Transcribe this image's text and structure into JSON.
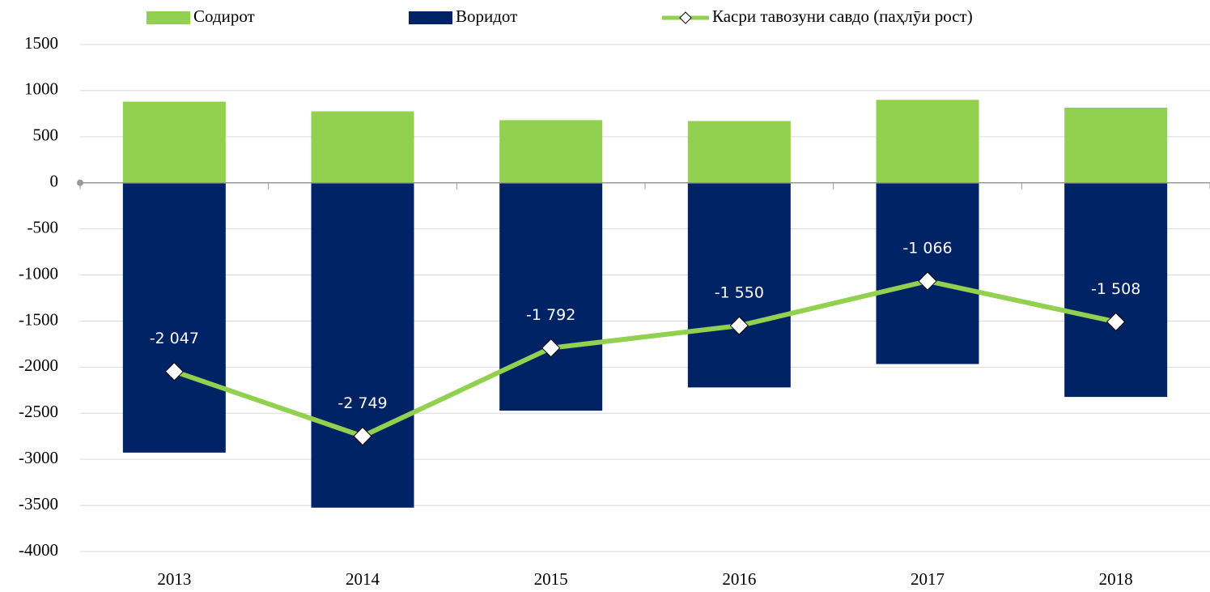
{
  "chart_data": {
    "type": "bar",
    "stacked": true,
    "categories": [
      "2013",
      "2014",
      "2015",
      "2016",
      "2017",
      "2018"
    ],
    "series": [
      {
        "name": "Содирот",
        "type": "bar",
        "color": "#92d050",
        "values": [
          880,
          775,
          680,
          670,
          900,
          815
        ]
      },
      {
        "name": "Воридот",
        "type": "bar",
        "color": "#002366",
        "values": [
          -2927,
          -3524,
          -2472,
          -2220,
          -1966,
          -2323
        ]
      },
      {
        "name": "Касри тавозуни савдо (паҳлӯи рост)",
        "type": "line",
        "color": "#92d050",
        "values": [
          -2047,
          -2749,
          -1792,
          -1550,
          -1066,
          -1508
        ],
        "value_labels": [
          "-2 047",
          "-2 749",
          "-1 792",
          "-1 550",
          "-1 066",
          "-1 508"
        ]
      }
    ],
    "ylim": [
      -4000,
      1500
    ],
    "yticks": [
      -4000,
      -3500,
      -3000,
      -2500,
      -2000,
      -1500,
      -1000,
      -500,
      0,
      500,
      1000,
      1500
    ],
    "grid": true,
    "legend": "top"
  }
}
